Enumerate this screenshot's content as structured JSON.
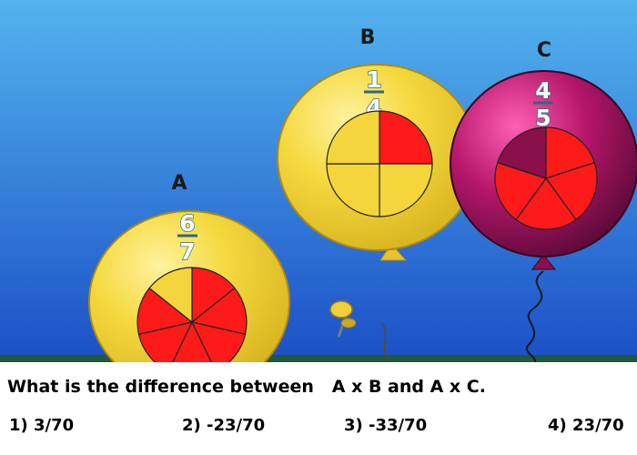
{
  "balloons": {
    "a": {
      "label": "A",
      "numerator": "6",
      "denominator": "7",
      "filled": 6,
      "parts": 7
    },
    "b": {
      "label": "B",
      "numerator": "1",
      "denominator": "4",
      "filled": 1,
      "parts": 4
    },
    "c": {
      "label": "C",
      "numerator": "4",
      "denominator": "5",
      "filled": 4,
      "parts": 5
    }
  },
  "question": "What is the difference between   A x B and A x C.",
  "options": [
    "1) 3/70",
    "2) -23/70",
    "3) -33/70",
    "4) 23/70"
  ],
  "colors": {
    "yellow": "#f4d63c",
    "magenta": "#b0155f",
    "red": "#ff1a1a",
    "sky_top": "#4aa3e8",
    "sky_bottom": "#1d52c8",
    "ground": "#1f5a3a"
  }
}
